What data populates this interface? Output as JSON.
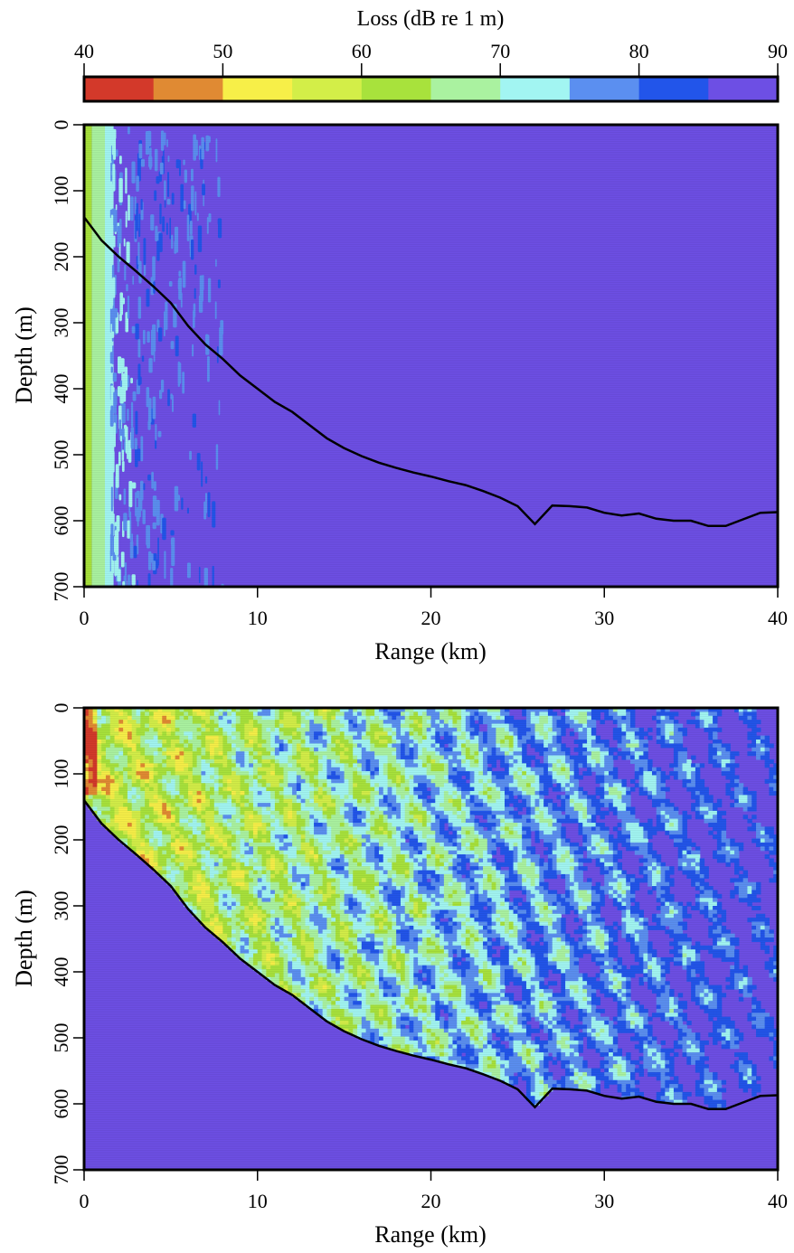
{
  "chart_data": {
    "colorbar": {
      "title": "Loss (dB re 1 m)",
      "ticks": [
        "40",
        "50",
        "60",
        "70",
        "80",
        "90"
      ],
      "range": [
        40,
        90
      ],
      "bins": [
        {
          "from": 40,
          "to": 45,
          "color": "#d3392a"
        },
        {
          "from": 45,
          "to": 50,
          "color": "#e08a33"
        },
        {
          "from": 50,
          "to": 55,
          "color": "#f7ef48"
        },
        {
          "from": 55,
          "to": 60,
          "color": "#d3ee48"
        },
        {
          "from": 60,
          "to": 65,
          "color": "#a8e23c"
        },
        {
          "from": 65,
          "to": 70,
          "color": "#aaf2a0"
        },
        {
          "from": 70,
          "to": 75,
          "color": "#a2f5f2"
        },
        {
          "from": 75,
          "to": 80,
          "color": "#5b8ff0"
        },
        {
          "from": 80,
          "to": 85,
          "color": "#2255ea"
        },
        {
          "from": 85,
          "to": 90,
          "color": "#6d4fe4"
        }
      ]
    },
    "panels": [
      {
        "type": "heatmap",
        "xlabel": "Range (km)",
        "ylabel": "Depth (m)",
        "xlim": [
          0,
          40
        ],
        "ylim": [
          700,
          0
        ],
        "xticks": [
          "0",
          "10",
          "20",
          "30",
          "40"
        ],
        "yticks": [
          "0",
          "100",
          "200",
          "300",
          "400",
          "500",
          "600",
          "700"
        ],
        "background_level": 90,
        "bathymetry": {
          "range_km": [
            0,
            1,
            2,
            3,
            4,
            5,
            6,
            7,
            8,
            9,
            10,
            11,
            12,
            13,
            14,
            15,
            16,
            17,
            18,
            19,
            20,
            21,
            22,
            23,
            24,
            25,
            26,
            27,
            28,
            29,
            30,
            31,
            32,
            33,
            34,
            35,
            36,
            37,
            38,
            39,
            40
          ],
          "depth_m": [
            140,
            175,
            200,
            222,
            245,
            270,
            305,
            333,
            355,
            380,
            400,
            420,
            435,
            455,
            475,
            490,
            502,
            512,
            520,
            527,
            533,
            540,
            546,
            555,
            565,
            578,
            605,
            577,
            578,
            580,
            588,
            592,
            589,
            597,
            600,
            600,
            608,
            608,
            598,
            588,
            587
          ]
        }
      },
      {
        "type": "heatmap",
        "xlabel": "Range (km)",
        "ylabel": "Depth (m)",
        "xlim": [
          0,
          40
        ],
        "ylim": [
          700,
          0
        ],
        "xticks": [
          "0",
          "10",
          "20",
          "30",
          "40"
        ],
        "yticks": [
          "0",
          "100",
          "200",
          "300",
          "400",
          "500",
          "600",
          "700"
        ],
        "background_level": 90,
        "bathymetry": {
          "range_km": [
            0,
            1,
            2,
            3,
            4,
            5,
            6,
            7,
            8,
            9,
            10,
            11,
            12,
            13,
            14,
            15,
            16,
            17,
            18,
            19,
            20,
            21,
            22,
            23,
            24,
            25,
            26,
            27,
            28,
            29,
            30,
            31,
            32,
            33,
            34,
            35,
            36,
            37,
            38,
            39,
            40
          ],
          "depth_m": [
            140,
            175,
            200,
            222,
            245,
            270,
            305,
            333,
            355,
            380,
            400,
            420,
            435,
            455,
            475,
            490,
            502,
            512,
            520,
            527,
            533,
            540,
            546,
            555,
            565,
            578,
            605,
            577,
            578,
            580,
            588,
            592,
            589,
            597,
            600,
            600,
            608,
            608,
            598,
            588,
            587
          ]
        }
      }
    ]
  }
}
